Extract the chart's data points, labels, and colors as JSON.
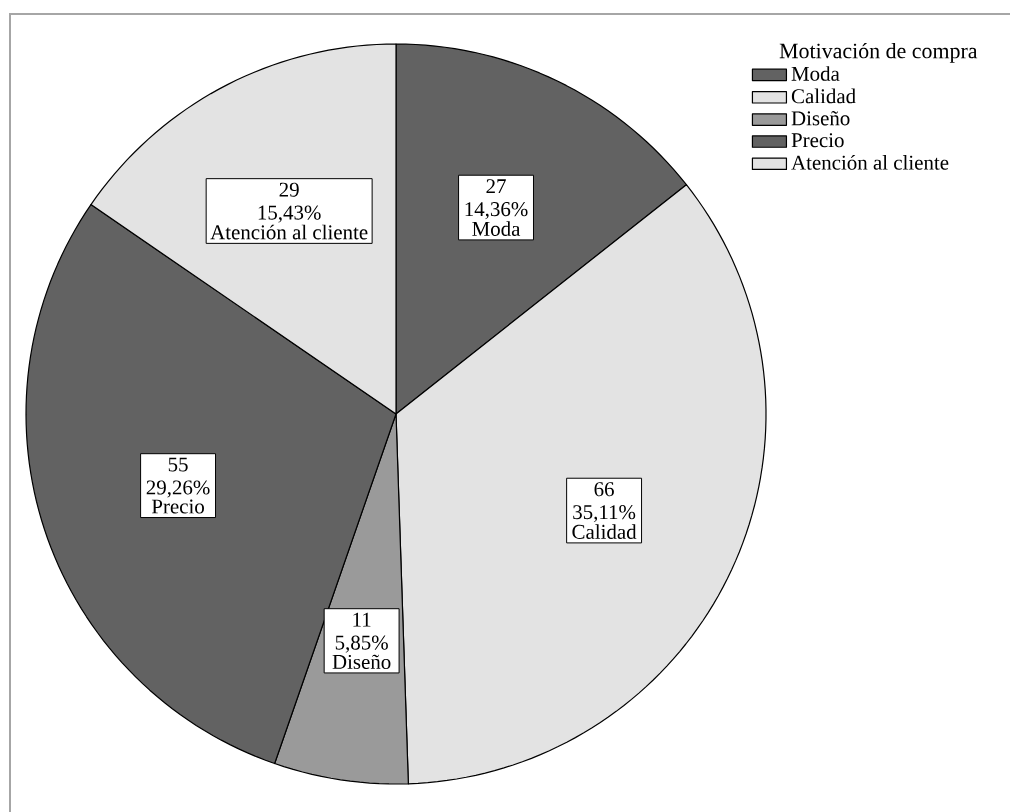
{
  "chart_data": {
    "type": "pie",
    "legend_title": "Motivación de compra",
    "categories": [
      "Moda",
      "Calidad",
      "Diseño",
      "Precio",
      "Atención al cliente"
    ],
    "values": [
      27,
      66,
      11,
      55,
      29
    ],
    "value_labels": [
      "27 14,36%",
      "66 35,11%",
      "11 5,85%",
      "55 29,26%",
      "29 15,43%"
    ],
    "colors": [
      "#626262",
      "#e3e3e3",
      "#9a9a9a",
      "#626262",
      "#e3e3e3"
    ],
    "legend": "top right"
  }
}
